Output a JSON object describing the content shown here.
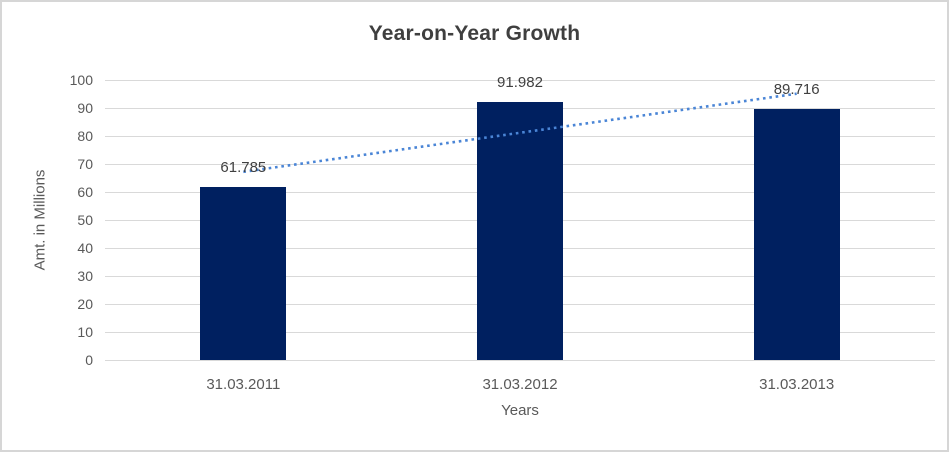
{
  "chart_data": {
    "type": "bar",
    "title": "Year-on-Year Growth",
    "categories": [
      "31.03.2011",
      "31.03.2012",
      "31.03.2013"
    ],
    "series": [
      {
        "name": "Amt. in Millions",
        "values": [
          61.785,
          91.982,
          89.716
        ],
        "color": "#002060"
      }
    ],
    "data_labels": [
      "61.785",
      "91.982",
      "89.716"
    ],
    "xlabel": "Years",
    "ylabel": "Amt. in Millions",
    "ylim": [
      0,
      100
    ],
    "yticks": [
      0,
      10,
      20,
      30,
      40,
      50,
      60,
      70,
      80,
      90,
      100
    ],
    "grid": "horizontal",
    "gridline_color": "#d9d9d9",
    "legend_position": "none",
    "trendline": {
      "type": "linear",
      "style": "dotted",
      "color": "#4a85d6",
      "start_value": 67.2,
      "end_value": 95.1
    },
    "colors": {
      "title_text": "#3f3f3f",
      "axis_text": "#595959",
      "data_label_text": "#404040",
      "frame_border": "#d6d6d6",
      "background": "#ffffff"
    }
  }
}
